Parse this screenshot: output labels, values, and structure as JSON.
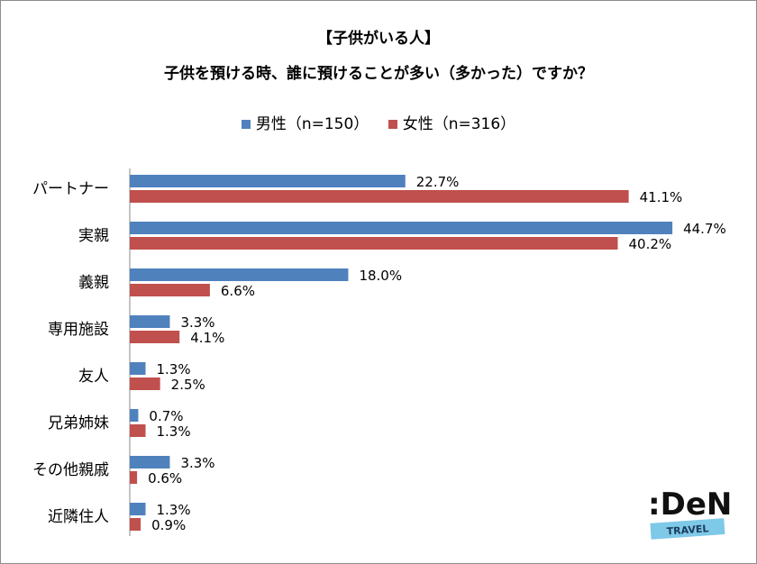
{
  "chart_data": {
    "type": "bar",
    "orientation": "horizontal",
    "title": "【子供がいる人】",
    "subtitle": "子供を預ける時、誰に預けることが多い（多かった）ですか？",
    "categories": [
      "パートナー",
      "実親",
      "義親",
      "専用施設",
      "友人",
      "兄弟姉妹",
      "その他親戚",
      "近隣住人"
    ],
    "series": [
      {
        "name": "男性（n=150）",
        "color": "#4f81bd",
        "values": [
          22.7,
          44.7,
          18.0,
          3.3,
          1.3,
          0.7,
          3.3,
          1.3
        ]
      },
      {
        "name": "女性（n=316）",
        "color": "#c0504d",
        "values": [
          41.1,
          40.2,
          6.6,
          4.1,
          2.5,
          1.3,
          0.6,
          0.9
        ]
      }
    ],
    "value_suffix": "%",
    "legend": "top",
    "grid": false
  },
  "logo": {
    "text": "DeNA",
    "sub": "TRAVEL"
  }
}
